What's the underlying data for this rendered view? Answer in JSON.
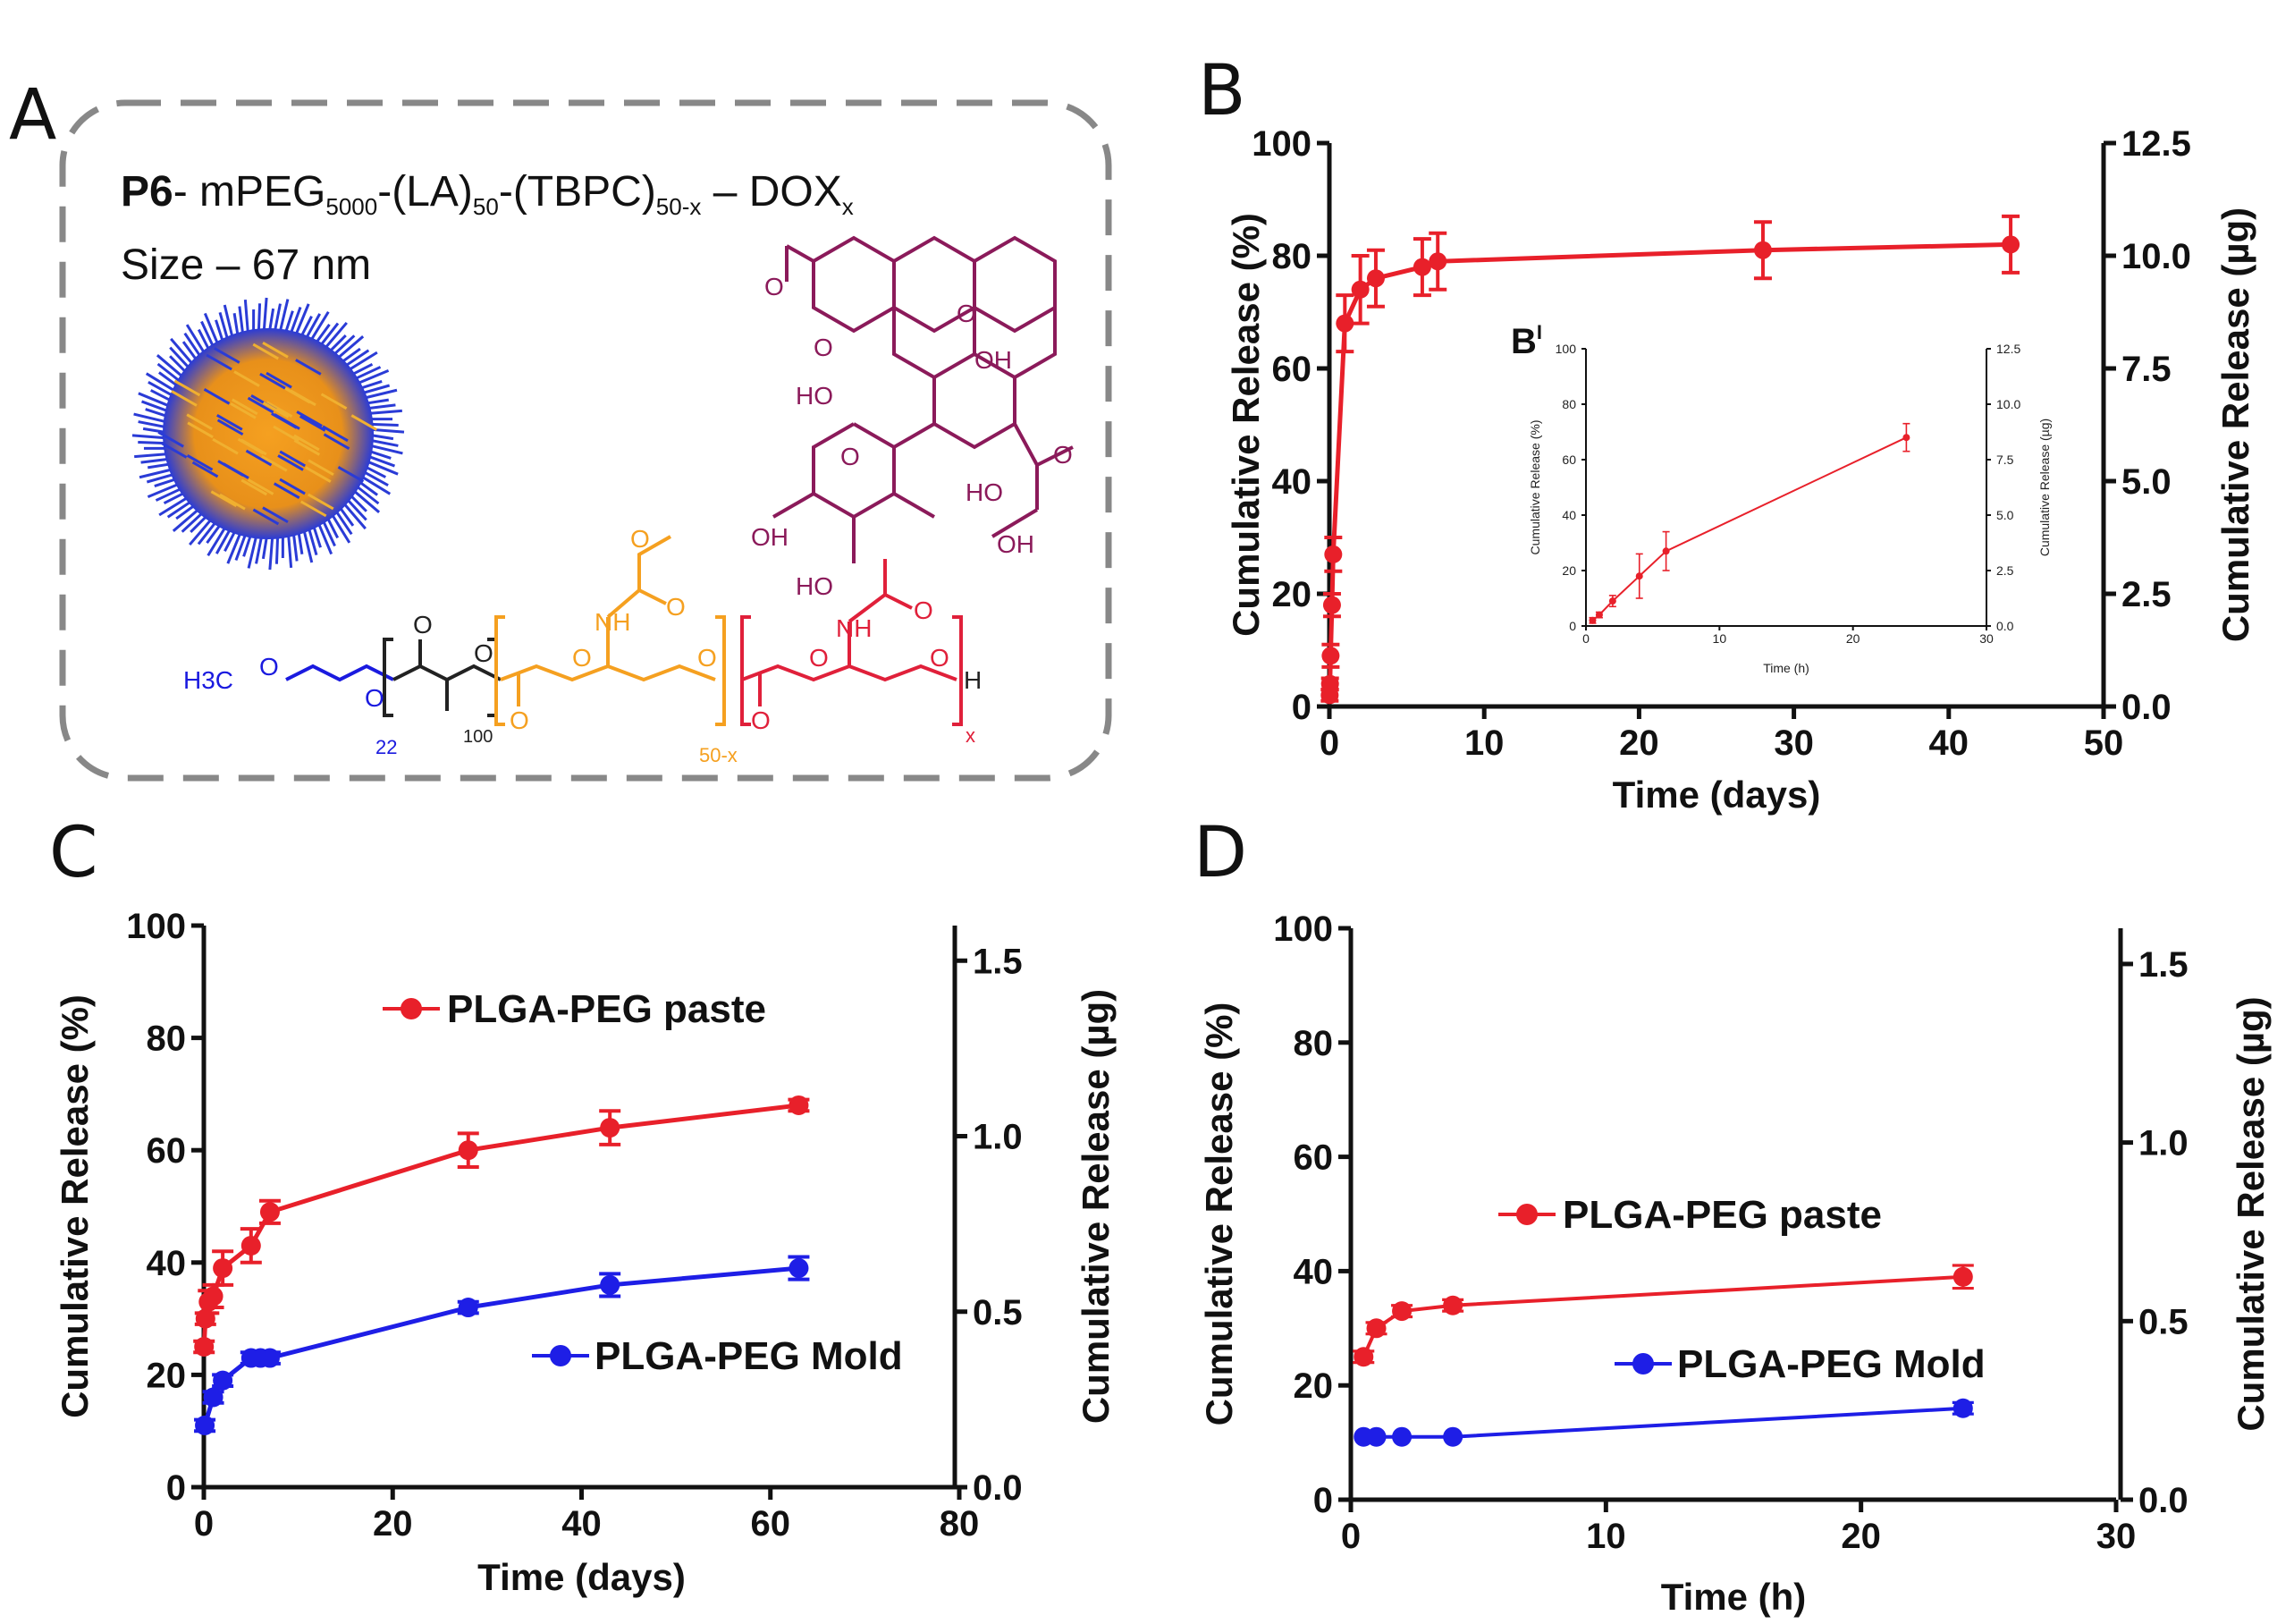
{
  "figure": {
    "panel_labels": [
      "A",
      "B",
      "C",
      "D"
    ],
    "inset_label": "B",
    "inset_label_mark": "I"
  },
  "panelA": {
    "title_prefix": "P6",
    "title_parts": [
      "- mPEG",
      "5000",
      "-(LA)",
      "50",
      "-(TBPC)",
      "50-x",
      " – DOX",
      "x"
    ],
    "size_label": "Size – 67 nm",
    "chem_labels": {
      "methoxy": "H3C",
      "o": "O",
      "n22": "22",
      "n100": "100",
      "n50x": "50-x",
      "x": "x",
      "nh": "NH",
      "oh": "OH",
      "h": "H",
      "ho": "HO"
    },
    "colors": {
      "peg": "#1a1adf",
      "tbpc": "#f5a020",
      "dox_linker": "#e0203a",
      "dox": "#8b1a5a"
    }
  },
  "chart_data": [
    {
      "id": "B",
      "type": "line",
      "xlabel": "Time (days)",
      "ylabel": "Cumulative Release (%)",
      "y2label": "Cumulative Release (µg)",
      "xlim": [
        0,
        50
      ],
      "ylim": [
        0,
        100
      ],
      "y2lim": [
        0,
        12.5
      ],
      "xticks": [
        "0",
        "10",
        "20",
        "30",
        "40",
        "50"
      ],
      "yticks": [
        "0",
        "20",
        "40",
        "60",
        "80",
        "100"
      ],
      "y2ticks": [
        "0.0",
        "2.5",
        "5.0",
        "7.5",
        "10.0",
        "12.5"
      ],
      "series": [
        {
          "name": "release",
          "color": "#e8202a",
          "x": [
            0.02,
            0.04,
            0.08,
            0.17,
            0.25,
            1,
            2,
            3,
            6,
            7,
            28,
            44
          ],
          "y": [
            2,
            4,
            9,
            18,
            27,
            68,
            74,
            76,
            78,
            79,
            81,
            82
          ],
          "err": [
            1,
            1,
            2,
            2,
            3,
            5,
            6,
            5,
            5,
            5,
            5,
            5
          ]
        }
      ],
      "inset": {
        "xlabel": "Time (h)",
        "ylabel": "Cumulative Release (%)",
        "y2label": "Cumulative Release (µg)",
        "xlim": [
          0,
          30
        ],
        "ylim": [
          0,
          100
        ],
        "y2lim": [
          0,
          12.5
        ],
        "xticks": [
          "0",
          "10",
          "20",
          "30"
        ],
        "yticks": [
          "0",
          "20",
          "40",
          "60",
          "80",
          "100"
        ],
        "y2ticks": [
          "0.0",
          "2.5",
          "5.0",
          "7.5",
          "10.0",
          "12.5"
        ],
        "series": [
          {
            "name": "release_hours",
            "color": "#e8202a",
            "x": [
              0.5,
              1,
              2,
              4,
              6,
              24
            ],
            "y": [
              2,
              4,
              9,
              18,
              27,
              68
            ],
            "err": [
              1,
              1,
              2,
              8,
              7,
              5
            ]
          }
        ]
      }
    },
    {
      "id": "C",
      "type": "line",
      "xlabel": "Time (days)",
      "ylabel": "Cumulative Release (%)",
      "y2label": "Cumulative Release (µg)",
      "xlim": [
        0,
        80
      ],
      "ylim": [
        0,
        100
      ],
      "y2lim": [
        0,
        1.6
      ],
      "xticks": [
        "0",
        "20",
        "40",
        "60",
        "80"
      ],
      "yticks": [
        "0",
        "20",
        "40",
        "60",
        "80",
        "100"
      ],
      "y2ticks": [
        "0.0",
        "0.5",
        "1.0",
        "1.5"
      ],
      "series": [
        {
          "name": "PLGA-PEG paste",
          "color": "#e8202a",
          "x": [
            0.02,
            0.17,
            0.5,
            1,
            2,
            5,
            7,
            28,
            43,
            63
          ],
          "y": [
            25,
            30,
            33,
            34,
            39,
            43,
            49,
            60,
            64,
            68
          ],
          "err": [
            1,
            1,
            2,
            2,
            3,
            3,
            2,
            3,
            3,
            1
          ]
        },
        {
          "name": "PLGA-PEG Mold",
          "color": "#1e1ee6",
          "x": [
            0.1,
            1,
            2,
            5,
            6,
            7,
            28,
            43,
            63
          ],
          "y": [
            11,
            16,
            19,
            23,
            23,
            23,
            32,
            36,
            39
          ],
          "err": [
            1,
            1,
            1,
            1,
            1,
            1,
            1,
            2,
            2
          ]
        }
      ]
    },
    {
      "id": "D",
      "type": "line",
      "xlabel": "Time (h)",
      "ylabel": "Cumulative Release (%)",
      "y2label": "Cumulative Release (µg)",
      "xlim": [
        0,
        30
      ],
      "ylim": [
        0,
        100
      ],
      "y2lim": [
        0,
        1.6
      ],
      "xticks": [
        "0",
        "10",
        "20",
        "30"
      ],
      "yticks": [
        "0",
        "20",
        "40",
        "60",
        "80",
        "100"
      ],
      "y2ticks": [
        "0.0",
        "0.5",
        "1.0",
        "1.5"
      ],
      "series": [
        {
          "name": "PLGA-PEG paste",
          "color": "#e8202a",
          "x": [
            0.5,
            1,
            2,
            4,
            24
          ],
          "y": [
            25,
            30,
            33,
            34,
            39
          ],
          "err": [
            1,
            1,
            1,
            1,
            2
          ]
        },
        {
          "name": "PLGA-PEG Mold",
          "color": "#1e1ee6",
          "x": [
            0.5,
            1,
            2,
            4,
            24
          ],
          "y": [
            11,
            11,
            11,
            11,
            16
          ],
          "err": [
            0,
            0,
            0,
            0,
            1
          ]
        }
      ]
    }
  ]
}
